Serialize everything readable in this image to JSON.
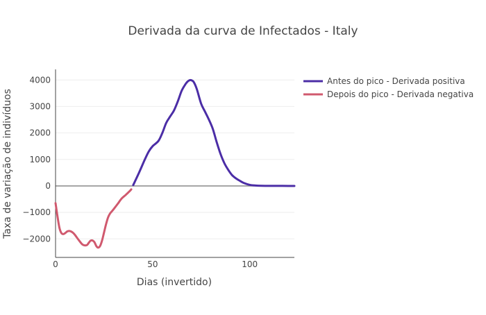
{
  "chart_data": {
    "type": "line",
    "title": "Derivada da curva de Infectados - Italy",
    "xlabel": "Dias (invertido)",
    "ylabel": "Taxa de variação de indivíduos",
    "xlim": [
      0,
      123
    ],
    "ylim": [
      -2700,
      4400
    ],
    "x_ticks": [
      0,
      50,
      100
    ],
    "x_tick_labels": [
      "0",
      "50",
      "100"
    ],
    "y_ticks": [
      -2000,
      -1000,
      0,
      1000,
      2000,
      3000,
      4000
    ],
    "y_tick_labels": [
      "−2000",
      "−1000",
      "0",
      "1000",
      "2000",
      "3000",
      "4000"
    ],
    "grid": true,
    "legend_position": "top-right",
    "series": [
      {
        "name": "Antes do pico - Derivada positiva",
        "color": "#4b2da6",
        "x": [
          40,
          43,
          46,
          48,
          50,
          53,
          55,
          57,
          59,
          61,
          63,
          65,
          67,
          68,
          69,
          70,
          71,
          72,
          73,
          75,
          77,
          79,
          81,
          83,
          85,
          87,
          89,
          91,
          93,
          95,
          97,
          100,
          103,
          106,
          110,
          115,
          120,
          123
        ],
        "y": [
          30,
          500,
          1000,
          1300,
          1500,
          1700,
          2000,
          2380,
          2620,
          2850,
          3200,
          3600,
          3850,
          3940,
          3990,
          3990,
          3940,
          3800,
          3600,
          3100,
          2800,
          2500,
          2150,
          1650,
          1200,
          850,
          600,
          400,
          280,
          190,
          110,
          40,
          15,
          5,
          2,
          1,
          0,
          0
        ]
      },
      {
        "name": "Depois do pico - Derivada negativa",
        "color": "#d0596e",
        "x": [
          0,
          1,
          2,
          3,
          4,
          5,
          6,
          7,
          8,
          9,
          10,
          12,
          14,
          16,
          17,
          18,
          19,
          20,
          21,
          22,
          23,
          24,
          25,
          26,
          27,
          28,
          29,
          30,
          32,
          34,
          36,
          38,
          39
        ],
        "y": [
          -650,
          -1150,
          -1580,
          -1780,
          -1820,
          -1780,
          -1720,
          -1700,
          -1720,
          -1770,
          -1850,
          -2050,
          -2220,
          -2240,
          -2160,
          -2070,
          -2060,
          -2120,
          -2270,
          -2330,
          -2260,
          -2050,
          -1750,
          -1450,
          -1200,
          -1050,
          -960,
          -870,
          -680,
          -480,
          -350,
          -210,
          -130
        ]
      }
    ]
  }
}
